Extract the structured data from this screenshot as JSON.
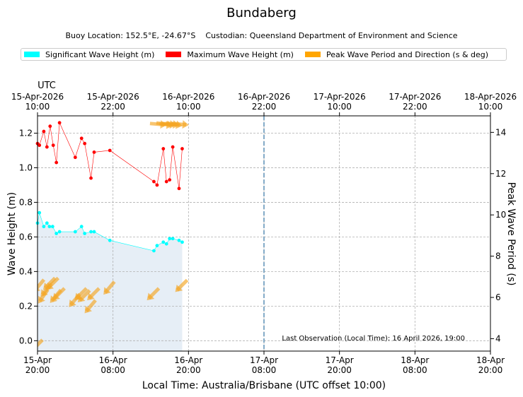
{
  "chart_data": {
    "type": "line",
    "title": "Bundaberg",
    "subtitle_location": "Buoy Location: 152.5°E, -24.67°S",
    "subtitle_custodian": "Custodian: Queensland Department of Environment and Science",
    "legend": [
      {
        "label": "Significant Wave Height (m)",
        "color": "#00ffff"
      },
      {
        "label": "Maximum Wave Height (m)",
        "color": "#ff0000"
      },
      {
        "label": "Peak Wave Period and Direction (s & deg)",
        "color": "#ffa500"
      }
    ],
    "top_axis_title": "UTC",
    "top_ticks": [
      {
        "date": "15-Apr-2026",
        "time": "10:00"
      },
      {
        "date": "15-Apr-2026",
        "time": "22:00"
      },
      {
        "date": "16-Apr-2026",
        "time": "10:00"
      },
      {
        "date": "16-Apr-2026",
        "time": "22:00"
      },
      {
        "date": "17-Apr-2026",
        "time": "10:00"
      },
      {
        "date": "17-Apr-2026",
        "time": "22:00"
      },
      {
        "date": "18-Apr-2026",
        "time": "10:00"
      }
    ],
    "bottom_ticks": [
      {
        "date": "15-Apr",
        "time": "20:00"
      },
      {
        "date": "16-Apr",
        "time": "08:00"
      },
      {
        "date": "16-Apr",
        "time": "20:00"
      },
      {
        "date": "17-Apr",
        "time": "08:00"
      },
      {
        "date": "17-Apr",
        "time": "20:00"
      },
      {
        "date": "18-Apr",
        "time": "08:00"
      },
      {
        "date": "18-Apr",
        "time": "20:00"
      }
    ],
    "xlabel": "Local Time: Australia/Brisbane (UTC offset 10:00)",
    "ylabel": "Wave Height (m)",
    "y2label": "Peak Wave Period (s)",
    "xlim_hours": [
      0,
      72
    ],
    "ylim": [
      -0.06,
      1.3
    ],
    "y_ticks": [
      "0.0",
      "0.2",
      "0.4",
      "0.6",
      "0.8",
      "1.0",
      "1.2"
    ],
    "y2lim": [
      3.4,
      14.8
    ],
    "y2_ticks": [
      "4",
      "6",
      "8",
      "10",
      "12",
      "14"
    ],
    "grid": true,
    "now_marker_hour": 36,
    "annotation": "Last Observation (Local Time): 16 April 2026, 19:00",
    "series": [
      {
        "name": "Significant Wave Height (m)",
        "x": [
          0.0,
          0.3,
          1.0,
          1.5,
          1.9,
          2.4,
          3.0,
          3.5,
          6.0,
          7.0,
          7.5,
          8.5,
          9.0,
          11.5,
          18.5,
          19.0,
          20.0,
          20.5,
          21.0,
          21.5,
          22.5,
          23.0
        ],
        "values": [
          0.68,
          0.74,
          0.66,
          0.68,
          0.66,
          0.66,
          0.62,
          0.63,
          0.63,
          0.66,
          0.62,
          0.63,
          0.63,
          0.58,
          0.52,
          0.55,
          0.57,
          0.56,
          0.59,
          0.59,
          0.58,
          0.57
        ]
      },
      {
        "name": "Maximum Wave Height (m)",
        "x": [
          0.0,
          0.3,
          1.0,
          1.5,
          2.0,
          2.5,
          3.0,
          3.5,
          6.0,
          7.0,
          7.5,
          8.5,
          9.0,
          11.5,
          18.5,
          19.0,
          20.0,
          20.5,
          21.0,
          21.5,
          22.5,
          23.0
        ],
        "values": [
          1.14,
          1.13,
          1.21,
          1.12,
          1.24,
          1.13,
          1.03,
          1.26,
          1.06,
          1.17,
          1.14,
          0.94,
          1.09,
          1.1,
          0.92,
          0.9,
          1.11,
          0.92,
          0.93,
          1.12,
          0.88,
          1.11
        ]
      },
      {
        "name": "Peak Wave Period and Direction (s & deg)",
        "arrows_x": [
          0.0,
          0.3,
          1.0,
          1.5,
          2.0,
          2.5,
          3.0,
          3.5,
          6.0,
          7.0,
          7.5,
          8.5,
          9.0,
          11.5,
          18.5,
          19.0,
          20.0,
          20.5,
          21.0,
          21.5,
          22.5,
          23.0
        ],
        "arrows_period": [
          3.7,
          6.6,
          6.1,
          6.4,
          6.7,
          6.7,
          6.1,
          6.2,
          5.9,
          6.2,
          6.1,
          5.6,
          6.2,
          6.5,
          6.2,
          14.4,
          14.4,
          14.4,
          14.4,
          14.4,
          14.4,
          6.6
        ],
        "arrows_dir_deg": [
          225,
          220,
          215,
          220,
          225,
          225,
          220,
          225,
          220,
          225,
          225,
          220,
          225,
          220,
          225,
          95,
          100,
          95,
          95,
          100,
          95,
          225
        ]
      }
    ]
  }
}
